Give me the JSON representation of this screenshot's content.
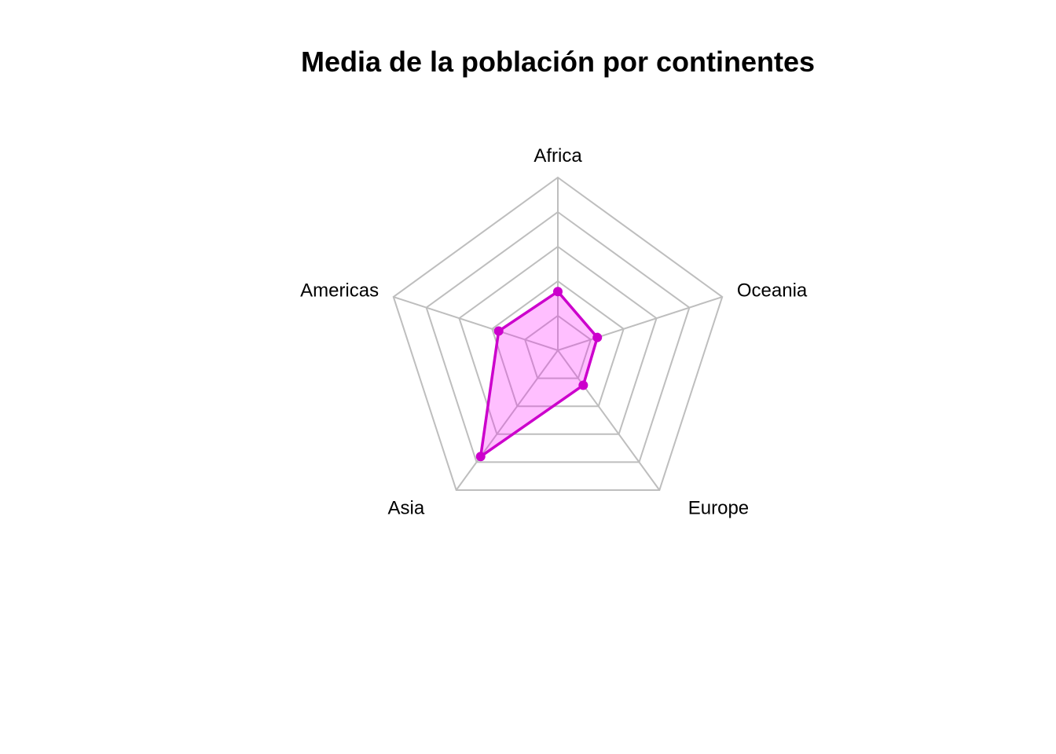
{
  "chart_data": {
    "type": "radar",
    "title": "Media de la población por continentes",
    "categories": [
      "Africa",
      "Oceania",
      "Europe",
      "Asia",
      "Americas"
    ],
    "series": [
      {
        "values": [
          0.34,
          0.24,
          0.25,
          0.76,
          0.36
        ],
        "color": "#cc00cc",
        "fill": "#ff00ff"
      }
    ],
    "grid_levels": 5,
    "range": [
      0,
      1
    ],
    "grid_color": "#bebebe"
  }
}
